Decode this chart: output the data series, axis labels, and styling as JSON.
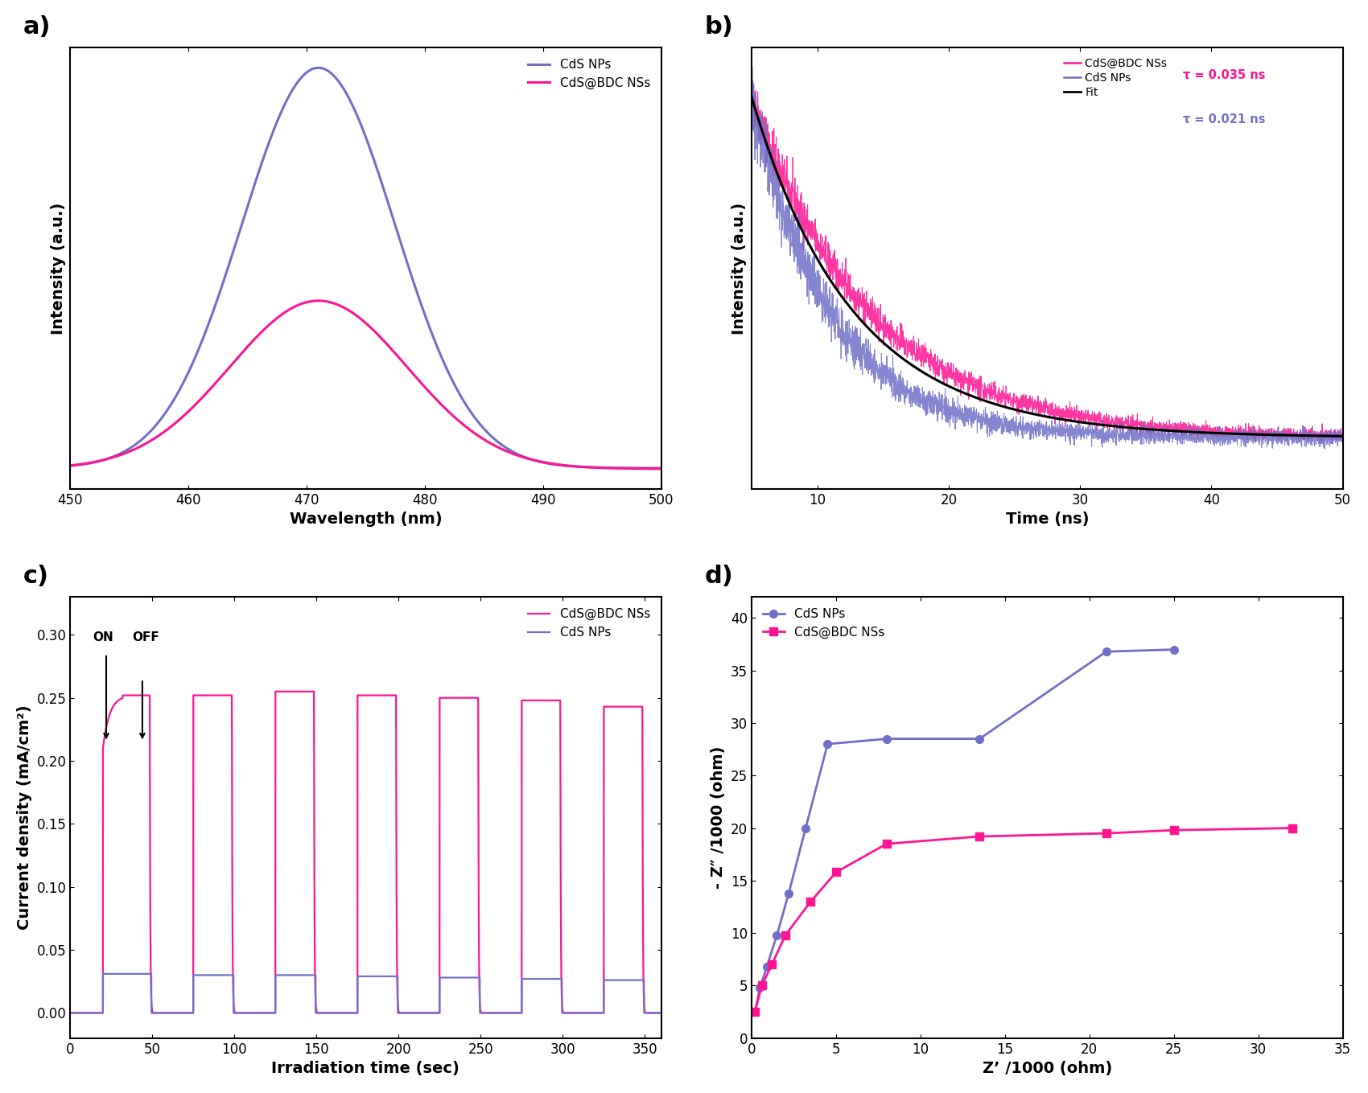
{
  "panel_a": {
    "title": "a)",
    "xlabel": "Wavelength (nm)",
    "ylabel": "Intensity (a.u.)",
    "xlim": [
      450,
      500
    ],
    "cds_nps_color": "#7070C8",
    "cds_bdc_color": "#FF1493",
    "legend_labels": [
      "CdS NPs",
      "CdS@BDC NSs"
    ]
  },
  "panel_b": {
    "title": "b)",
    "xlabel": "Time (ns)",
    "ylabel": "Intensity (a.u.)",
    "xlim": [
      5,
      50
    ],
    "cds_bdc_color": "#FF1493",
    "cds_nps_color": "#7070C8",
    "fit_color": "#000000",
    "tau_bdc_text": "τ = 0.035 ns",
    "tau_nps_text": "τ = 0.021 ns",
    "legend_labels": [
      "CdS@BDC NSs",
      "CdS NPs",
      "Fit"
    ]
  },
  "panel_c": {
    "title": "c)",
    "xlabel": "Irradiation time (sec)",
    "ylabel": "Current density (mA/cm²)",
    "xlim": [
      0,
      360
    ],
    "ylim": [
      -0.02,
      0.33
    ],
    "cds_bdc_color": "#FF1493",
    "cds_nps_color": "#7070C8",
    "legend_labels": [
      "CdS@BDC NSs",
      "CdS NPs"
    ]
  },
  "panel_d": {
    "title": "d)",
    "xlabel": "Z’ /1000 (ohm)",
    "ylabel": "- Z″ /1000 (ohm)",
    "xlim": [
      0,
      35
    ],
    "ylim": [
      0,
      42
    ],
    "cds_nps_color": "#7070C8",
    "cds_bdc_color": "#FF1493",
    "legend_labels": [
      "CdS NPs",
      "CdS@BDC NSs"
    ],
    "cds_nps_x": [
      0.2,
      0.5,
      0.9,
      1.5,
      2.2,
      3.2,
      4.5,
      8.0,
      13.5,
      21.0,
      25.0
    ],
    "cds_nps_y": [
      2.5,
      4.8,
      6.8,
      9.8,
      13.8,
      20.0,
      28.0,
      28.5,
      28.5,
      36.8,
      37.0
    ],
    "cds_bdc_x": [
      0.2,
      0.6,
      1.2,
      2.0,
      3.5,
      5.0,
      8.0,
      13.5,
      21.0,
      25.0,
      32.0
    ],
    "cds_bdc_y": [
      2.5,
      5.0,
      7.0,
      9.8,
      13.0,
      15.8,
      18.5,
      19.2,
      19.5,
      19.8,
      20.0
    ]
  }
}
